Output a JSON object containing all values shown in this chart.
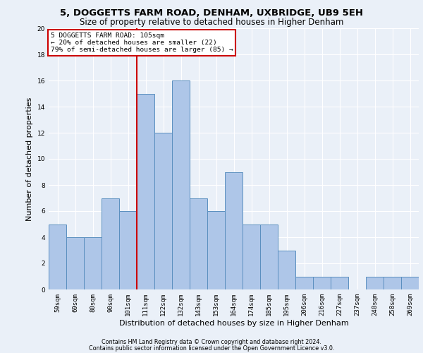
{
  "title": "5, DOGGETTS FARM ROAD, DENHAM, UXBRIDGE, UB9 5EH",
  "subtitle": "Size of property relative to detached houses in Higher Denham",
  "xlabel": "Distribution of detached houses by size in Higher Denham",
  "ylabel": "Number of detached properties",
  "footnote1": "Contains HM Land Registry data © Crown copyright and database right 2024.",
  "footnote2": "Contains public sector information licensed under the Open Government Licence v3.0.",
  "bar_labels": [
    "59sqm",
    "69sqm",
    "80sqm",
    "90sqm",
    "101sqm",
    "111sqm",
    "122sqm",
    "132sqm",
    "143sqm",
    "153sqm",
    "164sqm",
    "174sqm",
    "185sqm",
    "195sqm",
    "206sqm",
    "216sqm",
    "227sqm",
    "237sqm",
    "248sqm",
    "258sqm",
    "269sqm"
  ],
  "bar_values": [
    5,
    4,
    4,
    7,
    6,
    15,
    12,
    16,
    7,
    6,
    9,
    5,
    5,
    3,
    1,
    1,
    1,
    0,
    1,
    1,
    1
  ],
  "bar_color": "#aec6e8",
  "bar_edge_color": "#5a8fbf",
  "vline_x": 4.5,
  "vline_color": "#cc0000",
  "annotation_text": "5 DOGGETTS FARM ROAD: 105sqm\n← 20% of detached houses are smaller (22)\n79% of semi-detached houses are larger (85) →",
  "annotation_box_color": "#cc0000",
  "ylim": [
    0,
    20
  ],
  "yticks": [
    0,
    2,
    4,
    6,
    8,
    10,
    12,
    14,
    16,
    18,
    20
  ],
  "bg_color": "#eaf0f8",
  "grid_color": "#ffffff",
  "title_fontsize": 9.5,
  "subtitle_fontsize": 8.5,
  "axis_label_fontsize": 8,
  "tick_fontsize": 6.5,
  "footnote_fontsize": 5.8
}
